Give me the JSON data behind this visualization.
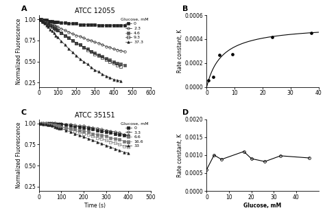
{
  "panel_A": {
    "title": "ATCC 12055",
    "label": "A",
    "xlabel": "",
    "ylabel": "Normalized Fluorescence",
    "xlim": [
      0,
      600
    ],
    "ylim": [
      0.2,
      1.05
    ],
    "yticks": [
      0.25,
      0.5,
      0.75,
      1.0
    ],
    "xticks": [
      0,
      100,
      200,
      300,
      400,
      500,
      600
    ],
    "legend_title": "Glucose, mM",
    "series": [
      {
        "label": "0",
        "marker": "s",
        "fillstyle": "full",
        "color": "#222222",
        "markersize": 2.5,
        "x": [
          0,
          10,
          20,
          30,
          40,
          50,
          60,
          70,
          80,
          90,
          100,
          120,
          140,
          160,
          180,
          200,
          220,
          240,
          260,
          280,
          300,
          320,
          340,
          360,
          380,
          400,
          420,
          440,
          460
        ],
        "y": [
          1.0,
          1.0,
          0.99,
          0.99,
          0.99,
          0.98,
          0.98,
          0.98,
          0.97,
          0.97,
          0.97,
          0.96,
          0.96,
          0.95,
          0.95,
          0.95,
          0.94,
          0.94,
          0.94,
          0.94,
          0.94,
          0.93,
          0.93,
          0.93,
          0.93,
          0.93,
          0.93,
          0.93,
          0.93
        ]
      },
      {
        "label": "2.3",
        "marker": "o",
        "fillstyle": "none",
        "color": "#222222",
        "markersize": 2.5,
        "x": [
          0,
          10,
          20,
          30,
          40,
          50,
          60,
          70,
          80,
          90,
          100,
          120,
          140,
          160,
          180,
          200,
          220,
          240,
          260,
          280,
          300,
          320,
          340,
          360,
          380,
          400,
          420,
          440,
          460
        ],
        "y": [
          1.0,
          1.0,
          0.99,
          0.98,
          0.97,
          0.96,
          0.95,
          0.94,
          0.93,
          0.92,
          0.91,
          0.89,
          0.87,
          0.85,
          0.83,
          0.81,
          0.8,
          0.78,
          0.76,
          0.75,
          0.73,
          0.72,
          0.7,
          0.68,
          0.67,
          0.65,
          0.64,
          0.63,
          0.62
        ]
      },
      {
        "label": "4.6",
        "marker": "s",
        "fillstyle": "full",
        "color": "#555555",
        "markersize": 2.5,
        "x": [
          0,
          10,
          20,
          30,
          40,
          50,
          60,
          70,
          80,
          90,
          100,
          120,
          140,
          160,
          180,
          200,
          220,
          240,
          260,
          280,
          300,
          320,
          340,
          360,
          380,
          400,
          420,
          440,
          460
        ],
        "y": [
          1.0,
          0.99,
          0.98,
          0.97,
          0.96,
          0.94,
          0.93,
          0.92,
          0.9,
          0.89,
          0.87,
          0.84,
          0.81,
          0.78,
          0.75,
          0.72,
          0.7,
          0.67,
          0.65,
          0.62,
          0.6,
          0.58,
          0.56,
          0.54,
          0.52,
          0.5,
          0.48,
          0.47,
          0.46
        ]
      },
      {
        "label": "9.3",
        "marker": "s",
        "fillstyle": "none",
        "color": "#222222",
        "markersize": 2.5,
        "x": [
          0,
          10,
          20,
          30,
          40,
          50,
          60,
          70,
          80,
          90,
          100,
          120,
          140,
          160,
          180,
          200,
          220,
          240,
          260,
          280,
          300,
          320,
          340,
          360,
          380,
          400,
          420,
          440
        ],
        "y": [
          1.0,
          0.99,
          0.98,
          0.97,
          0.95,
          0.94,
          0.93,
          0.91,
          0.9,
          0.88,
          0.87,
          0.84,
          0.81,
          0.78,
          0.75,
          0.72,
          0.7,
          0.67,
          0.64,
          0.62,
          0.59,
          0.57,
          0.55,
          0.52,
          0.5,
          0.48,
          0.46,
          0.44
        ]
      },
      {
        "label": "37.3",
        "marker": "^",
        "fillstyle": "full",
        "color": "#222222",
        "markersize": 2.5,
        "x": [
          0,
          10,
          20,
          30,
          40,
          50,
          60,
          70,
          80,
          90,
          100,
          120,
          140,
          160,
          180,
          200,
          220,
          240,
          260,
          280,
          300,
          320,
          340,
          360,
          380,
          400,
          420,
          440
        ],
        "y": [
          1.0,
          0.99,
          0.97,
          0.95,
          0.93,
          0.91,
          0.88,
          0.86,
          0.84,
          0.81,
          0.79,
          0.74,
          0.7,
          0.65,
          0.61,
          0.57,
          0.53,
          0.5,
          0.47,
          0.43,
          0.4,
          0.38,
          0.35,
          0.33,
          0.31,
          0.29,
          0.28,
          0.27
        ]
      }
    ]
  },
  "panel_B": {
    "title": "",
    "label": "B",
    "xlabel": "",
    "ylabel": "Rate constant, K",
    "xlim": [
      0,
      40
    ],
    "ylim": [
      0,
      0.0006
    ],
    "yticks": [
      0.0,
      0.0002,
      0.0004,
      0.0006
    ],
    "ytick_labels": [
      "0.0000",
      "0.0002",
      "0.0004",
      "0.0006"
    ],
    "xticks": [
      0,
      10,
      20,
      30,
      40
    ],
    "points_x": [
      0.5,
      2.3,
      4.6,
      9.3,
      23.5,
      37.3
    ],
    "points_y": [
      5.5e-05,
      8.5e-05,
      0.00027,
      0.000275,
      0.000415,
      0.00045
    ],
    "fit_Km": 5.5,
    "fit_Vmax": 0.00052
  },
  "panel_C": {
    "title": "ATCC 35151",
    "label": "C",
    "xlabel": "Time (s)",
    "ylabel": "Normalized Fluorescence",
    "xlim": [
      0,
      500
    ],
    "ylim": [
      0.2,
      1.05
    ],
    "yticks": [
      0.25,
      0.5,
      0.75,
      1.0
    ],
    "xticks": [
      0,
      100,
      200,
      300,
      400,
      500
    ],
    "legend_title": "Glucose, mM",
    "series": [
      {
        "label": "0",
        "marker": "s",
        "fillstyle": "full",
        "color": "#222222",
        "markersize": 2.5,
        "x": [
          0,
          10,
          20,
          30,
          40,
          50,
          60,
          70,
          80,
          90,
          100,
          120,
          140,
          160,
          180,
          200,
          220,
          240,
          260,
          280,
          300,
          320,
          340,
          360,
          380,
          400
        ],
        "y": [
          1.0,
          1.0,
          1.0,
          1.0,
          1.0,
          1.0,
          0.99,
          0.99,
          0.99,
          0.99,
          0.99,
          0.98,
          0.97,
          0.96,
          0.96,
          0.95,
          0.94,
          0.93,
          0.92,
          0.91,
          0.9,
          0.89,
          0.88,
          0.87,
          0.86,
          0.85
        ]
      },
      {
        "label": "3.3",
        "marker": "o",
        "fillstyle": "none",
        "color": "#222222",
        "markersize": 2.5,
        "x": [
          0,
          10,
          20,
          30,
          40,
          50,
          60,
          70,
          80,
          90,
          100,
          120,
          140,
          160,
          180,
          200,
          220,
          240,
          260,
          280,
          300,
          320,
          340,
          360,
          380,
          400
        ],
        "y": [
          1.0,
          1.01,
          1.01,
          1.01,
          1.01,
          1.01,
          1.01,
          1.01,
          1.0,
          1.0,
          1.0,
          0.99,
          0.99,
          0.98,
          0.97,
          0.97,
          0.96,
          0.95,
          0.94,
          0.93,
          0.92,
          0.91,
          0.9,
          0.89,
          0.87,
          0.86
        ]
      },
      {
        "label": "6.6",
        "marker": "s",
        "fillstyle": "full",
        "color": "#777777",
        "markersize": 2.5,
        "x": [
          0,
          10,
          20,
          30,
          40,
          50,
          60,
          70,
          80,
          90,
          100,
          120,
          140,
          160,
          180,
          200,
          220,
          240,
          260,
          280,
          300,
          320,
          340,
          360,
          380,
          400
        ],
        "y": [
          1.0,
          1.0,
          1.0,
          1.0,
          0.99,
          0.99,
          0.98,
          0.98,
          0.97,
          0.97,
          0.96,
          0.95,
          0.94,
          0.93,
          0.92,
          0.91,
          0.9,
          0.88,
          0.87,
          0.86,
          0.85,
          0.83,
          0.82,
          0.81,
          0.79,
          0.78
        ]
      },
      {
        "label": "16.6",
        "marker": "s",
        "fillstyle": "none",
        "color": "#777777",
        "markersize": 2.5,
        "x": [
          0,
          10,
          20,
          30,
          40,
          50,
          60,
          70,
          80,
          90,
          100,
          120,
          140,
          160,
          180,
          200,
          220,
          240,
          260,
          280,
          300,
          320,
          340,
          360,
          380,
          400
        ],
        "y": [
          1.0,
          1.0,
          1.0,
          1.0,
          0.99,
          0.99,
          0.98,
          0.98,
          0.97,
          0.96,
          0.96,
          0.94,
          0.93,
          0.91,
          0.9,
          0.88,
          0.87,
          0.85,
          0.83,
          0.82,
          0.8,
          0.78,
          0.77,
          0.75,
          0.73,
          0.72
        ]
      },
      {
        "label": "33",
        "marker": "^",
        "fillstyle": "full",
        "color": "#222222",
        "markersize": 2.5,
        "x": [
          0,
          10,
          20,
          30,
          40,
          50,
          60,
          70,
          80,
          90,
          100,
          120,
          140,
          160,
          180,
          200,
          220,
          240,
          260,
          280,
          300,
          320,
          340,
          360,
          380,
          400
        ],
        "y": [
          1.0,
          1.0,
          0.99,
          0.99,
          0.98,
          0.98,
          0.97,
          0.96,
          0.95,
          0.94,
          0.94,
          0.92,
          0.9,
          0.88,
          0.86,
          0.84,
          0.82,
          0.8,
          0.78,
          0.76,
          0.74,
          0.72,
          0.7,
          0.68,
          0.66,
          0.65
        ]
      }
    ]
  },
  "panel_D": {
    "title": "",
    "label": "D",
    "xlabel": "Glucose, mM",
    "ylabel": "Rate constant, K",
    "xlim": [
      0,
      50
    ],
    "ylim": [
      0,
      0.002
    ],
    "yticks": [
      0.0,
      0.0005,
      0.001,
      0.0015,
      0.002
    ],
    "ytick_labels": [
      "0.0000",
      "0.0005",
      "0.0010",
      "0.0015",
      "0.0020"
    ],
    "xticks": [
      0,
      10,
      20,
      30,
      40
    ],
    "points_x": [
      0,
      3.3,
      6.6,
      16.6,
      20,
      26,
      33,
      46
    ],
    "points_y": [
      0.0006,
      0.001,
      0.00088,
      0.0011,
      0.0009,
      0.00082,
      0.00098,
      0.00092
    ]
  }
}
